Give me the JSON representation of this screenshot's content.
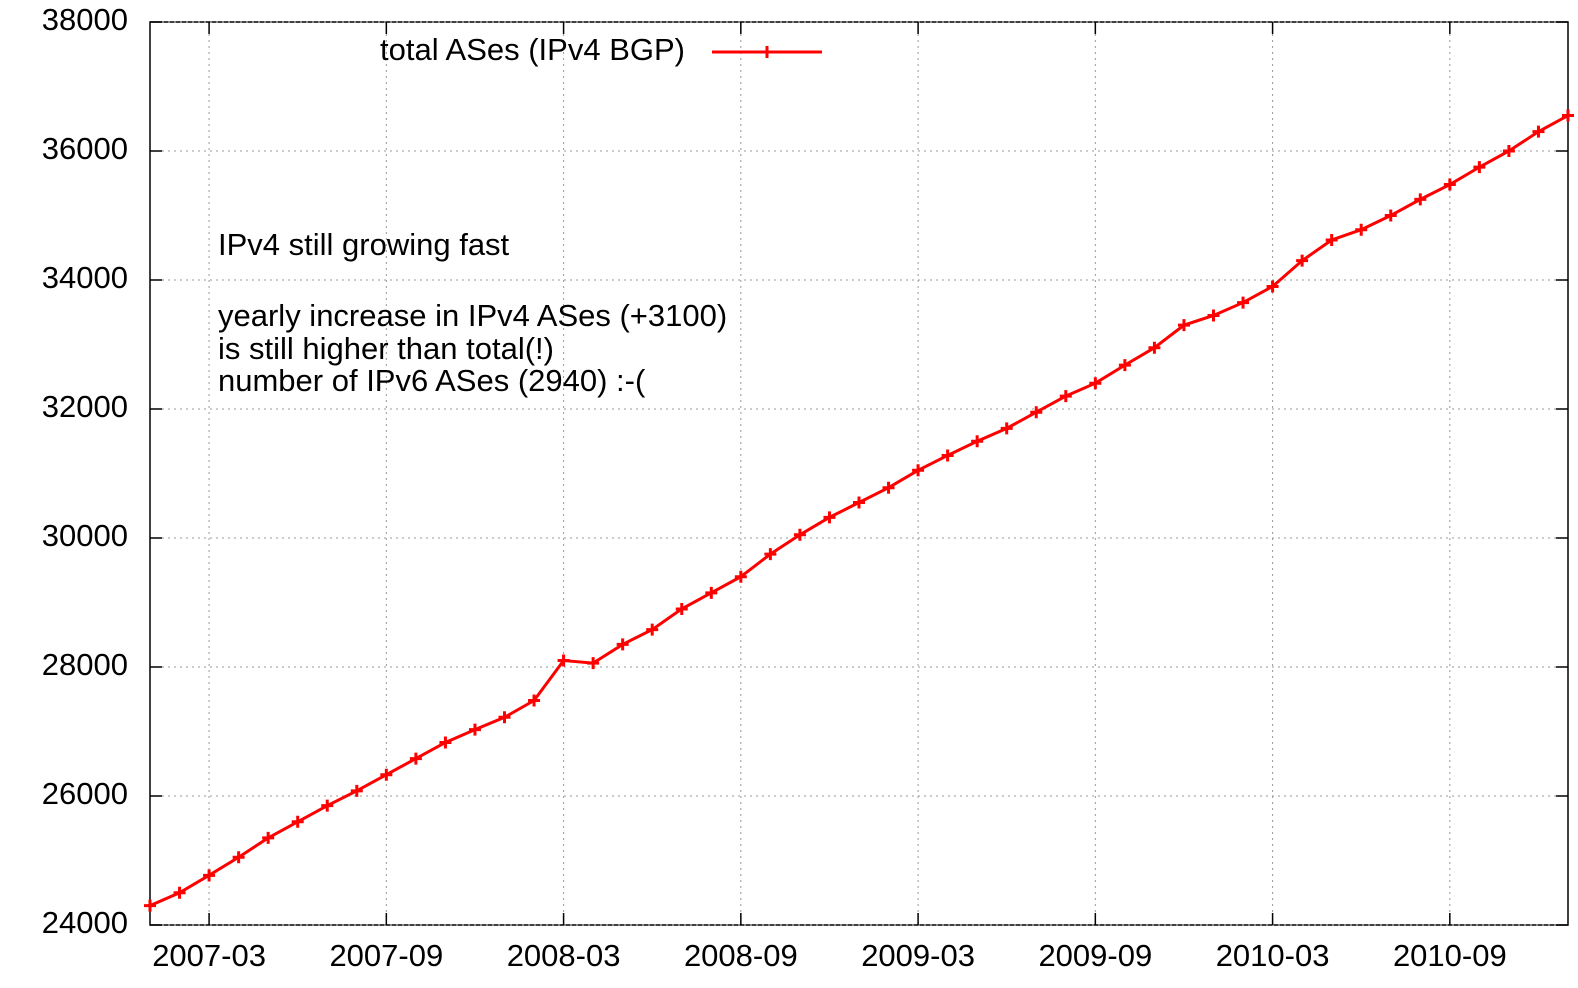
{
  "chart_data": {
    "type": "line",
    "annotations": [
      "IPv4 still growing fast",
      "yearly increase in IPv4 ASes (+3100)",
      "is still higher than total(!)",
      "number of IPv6 ASes (2940) :-("
    ],
    "x": [
      "2007-01",
      "2007-02",
      "2007-03",
      "2007-04",
      "2007-05",
      "2007-06",
      "2007-07",
      "2007-08",
      "2007-09",
      "2007-10",
      "2007-11",
      "2007-12",
      "2008-01",
      "2008-02",
      "2008-03",
      "2008-04",
      "2008-05",
      "2008-06",
      "2008-07",
      "2008-08",
      "2008-09",
      "2008-10",
      "2008-11",
      "2008-12",
      "2009-01",
      "2009-02",
      "2009-03",
      "2009-04",
      "2009-05",
      "2009-06",
      "2009-07",
      "2009-08",
      "2009-09",
      "2009-10",
      "2009-11",
      "2009-12",
      "2010-01",
      "2010-02",
      "2010-03",
      "2010-04",
      "2010-05",
      "2010-06",
      "2010-07",
      "2010-08",
      "2010-09",
      "2010-10",
      "2010-11",
      "2010-12",
      "2011-01"
    ],
    "series": [
      {
        "name": "total ASes (IPv4 BGP)",
        "color": "#ff0000",
        "values": [
          24300,
          24500,
          24770,
          25050,
          25350,
          25600,
          25850,
          26080,
          26330,
          26580,
          26830,
          27030,
          27220,
          27480,
          28100,
          28060,
          28350,
          28580,
          28900,
          29150,
          29400,
          29750,
          30050,
          30320,
          30550,
          30780,
          31050,
          31280,
          31500,
          31700,
          31950,
          32200,
          32400,
          32680,
          32950,
          33300,
          33450,
          33650,
          33900,
          34300,
          34620,
          34780,
          35000,
          35250,
          35480,
          35750,
          36000,
          36300,
          36550
        ]
      }
    ],
    "xlim": [
      "2007-01",
      "2011-01"
    ],
    "xticks": [
      "2007-03",
      "2007-09",
      "2008-03",
      "2008-09",
      "2009-03",
      "2009-09",
      "2010-03",
      "2010-09"
    ],
    "ylim": [
      24000,
      38000
    ],
    "yticks": [
      24000,
      26000,
      28000,
      30000,
      32000,
      34000,
      36000,
      38000
    ],
    "grid": true,
    "legend": "top"
  }
}
